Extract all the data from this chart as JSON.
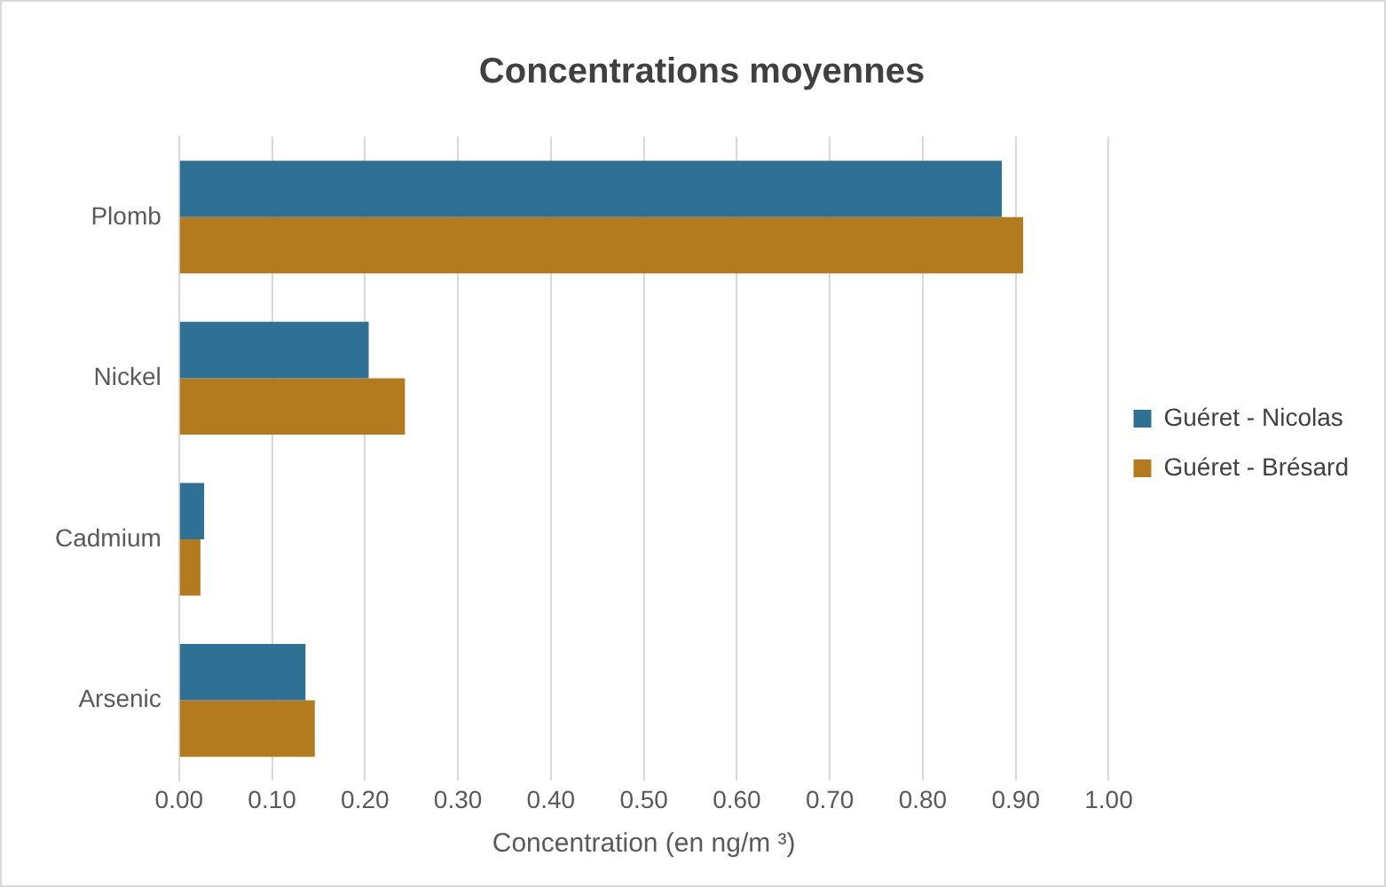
{
  "chart_data": {
    "type": "bar",
    "orientation": "horizontal",
    "title": "Concentrations moyennes",
    "xlabel": "Concentration (en ng/m ³)",
    "categories": [
      "Plomb",
      "Nickel",
      "Cadmium",
      "Arsenic"
    ],
    "series": [
      {
        "name": "Guéret - Nicolas",
        "color": "#2e7194",
        "values": [
          0.885,
          0.204,
          0.027,
          0.136
        ]
      },
      {
        "name": "Guéret - Brésard",
        "color": "#b47a1e",
        "values": [
          0.908,
          0.243,
          0.023,
          0.146
        ]
      }
    ],
    "xlim": [
      0,
      1
    ],
    "xticks": [
      {
        "value": 0,
        "label": "0.00"
      },
      {
        "value": 0.1,
        "label": "0.10"
      },
      {
        "value": 0.2,
        "label": "0.20"
      },
      {
        "value": 0.3,
        "label": "0.30"
      },
      {
        "value": 0.4,
        "label": "0.40"
      },
      {
        "value": 0.5,
        "label": "0.50"
      },
      {
        "value": 0.6,
        "label": "0.60"
      },
      {
        "value": 0.7,
        "label": "0.70"
      },
      {
        "value": 0.8,
        "label": "0.80"
      },
      {
        "value": 0.9,
        "label": "0.90"
      },
      {
        "value": 1,
        "label": "1.00"
      }
    ],
    "grid": "x",
    "legend": "right"
  }
}
